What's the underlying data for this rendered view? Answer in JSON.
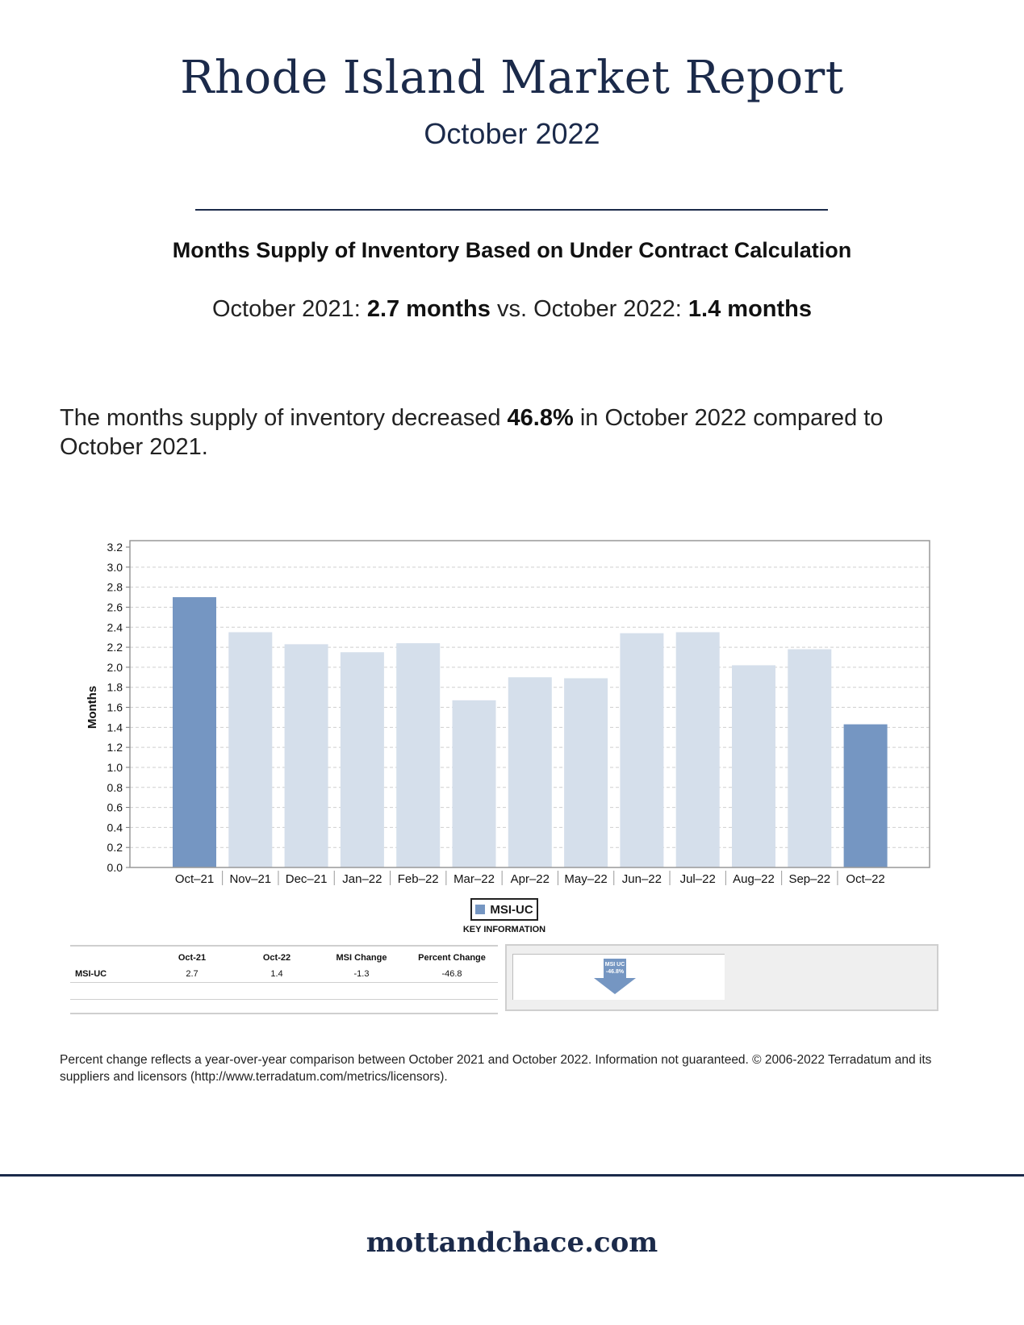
{
  "header": {
    "title": "Rhode Island Market Report",
    "subtitle": "October 2022"
  },
  "section": {
    "heading": "Months Supply of Inventory Based on Under Contract Calculation",
    "compare_prefix_1": "October 2021: ",
    "compare_value_1": "2.7 months",
    "compare_mid": " vs. October 2022: ",
    "compare_value_2": "1.4 months"
  },
  "summary": {
    "prefix": "The months supply of inventory decreased ",
    "value": "46.8%",
    "suffix": " in October 2022 compared to October 2021."
  },
  "chart_data": {
    "type": "bar",
    "categories": [
      "Oct–21",
      "Nov–21",
      "Dec–21",
      "Jan–22",
      "Feb–22",
      "Mar–22",
      "Apr–22",
      "May–22",
      "Jun–22",
      "Jul–22",
      "Aug–22",
      "Sep–22",
      "Oct–22"
    ],
    "values": [
      2.7,
      2.35,
      2.23,
      2.15,
      2.24,
      1.67,
      1.9,
      1.89,
      2.34,
      2.35,
      2.02,
      2.18,
      1.43
    ],
    "highlight": [
      true,
      false,
      false,
      false,
      false,
      false,
      false,
      false,
      false,
      false,
      false,
      false,
      true
    ],
    "ylabel": "Months",
    "ylim": [
      0,
      3.2
    ],
    "yticks": [
      "0.0",
      "0.2",
      "0.4",
      "0.6",
      "0.8",
      "1.0",
      "1.2",
      "1.4",
      "1.6",
      "1.8",
      "2.0",
      "2.2",
      "2.4",
      "2.6",
      "2.8",
      "3.0",
      "3.2"
    ],
    "grid": true,
    "legend": {
      "label": "MSI-UC",
      "position": "bottom-center"
    },
    "colors": {
      "highlight": "#7596c2",
      "normal": "#d5dfeb",
      "grid": "#cfcfcf"
    }
  },
  "key_info": {
    "title": "KEY INFORMATION",
    "columns": [
      "",
      "Oct-21",
      "Oct-22",
      "MSI Change",
      "Percent Change"
    ],
    "rows": [
      {
        "label": "MSI-UC",
        "oct21": "2.7",
        "oct22": "1.4",
        "change": "-1.3",
        "pct": "-46.8"
      }
    ],
    "arrow_line1": "MSI UC",
    "arrow_line2": "-46.8%"
  },
  "footer": {
    "note": "Percent change reflects a year-over-year comparison between October 2021 and October 2022. Information not guaranteed. © 2006-2022 Terradatum and its suppliers and licensors (http://www.terradatum.com/metrics/licensors).",
    "site": "mottandchace.com"
  }
}
